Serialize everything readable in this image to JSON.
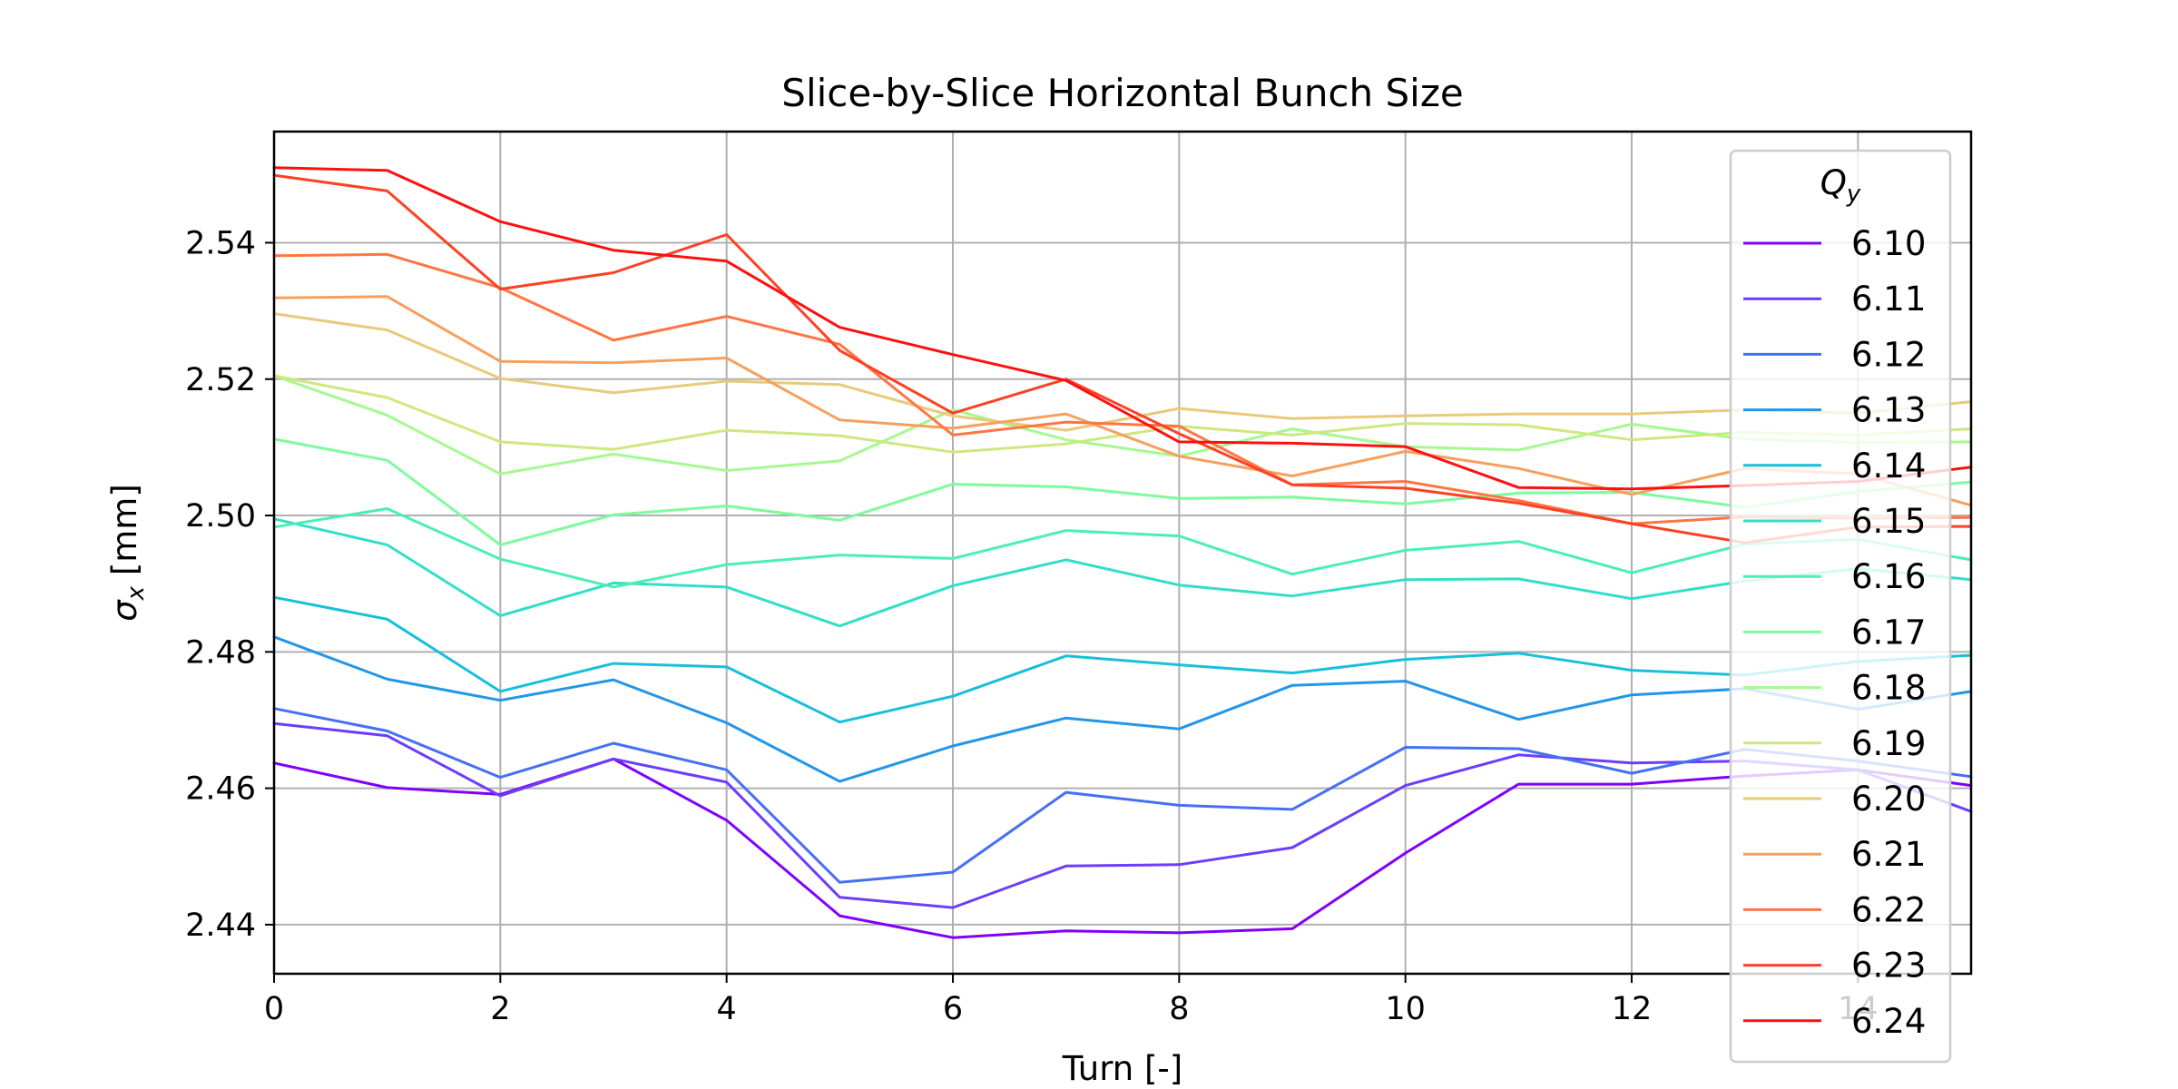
{
  "chart_data": {
    "type": "line",
    "title": "Slice-by-Slice Horizontal Bunch Size",
    "xlabel": "Turn [-]",
    "ylabel": "σ",
    "ylabel_sub": "x",
    "ylabel_unit": " [mm]",
    "xlim": [
      0,
      15
    ],
    "ylim": [
      2.4328,
      2.5563
    ],
    "xticks": [
      0,
      2,
      4,
      6,
      8,
      10,
      12,
      14
    ],
    "xtick_labels": [
      "0",
      "2",
      "4",
      "6",
      "8",
      "10",
      "12",
      "14"
    ],
    "yticks": [
      2.44,
      2.46,
      2.48,
      2.5,
      2.52,
      2.54
    ],
    "ytick_labels": [
      "2.44",
      "2.46",
      "2.48",
      "2.50",
      "2.52",
      "2.54"
    ],
    "grid": true,
    "legend_title": "Q",
    "legend_title_sub": "y",
    "legend_placement": "upper-right",
    "x": [
      0,
      1,
      2,
      3,
      4,
      5,
      6,
      7,
      8,
      9,
      10,
      11,
      12,
      13,
      14,
      15
    ],
    "series": [
      {
        "name": "6.10",
        "color": "#7f00ff",
        "values": [
          2.4637,
          2.4601,
          2.4591,
          2.4643,
          2.4553,
          2.4413,
          2.4381,
          2.4391,
          2.4388,
          2.4394,
          2.4505,
          2.4606,
          2.4606,
          2.4618,
          2.4627,
          2.4604
        ]
      },
      {
        "name": "6.11",
        "color": "#6b3dfd",
        "values": [
          2.4695,
          2.4677,
          2.4589,
          2.4643,
          2.4609,
          2.444,
          2.4425,
          2.4486,
          2.4488,
          2.4513,
          2.4604,
          2.4649,
          2.4637,
          2.464,
          2.4627,
          2.4566
        ]
      },
      {
        "name": "6.12",
        "color": "#4570f4",
        "values": [
          2.4717,
          2.4684,
          2.4616,
          2.4666,
          2.4627,
          2.4462,
          2.4477,
          2.4594,
          2.4575,
          2.4569,
          2.466,
          2.4658,
          2.4622,
          2.4657,
          2.464,
          2.4617
        ]
      },
      {
        "name": "6.13",
        "color": "#2296e8",
        "values": [
          2.4822,
          2.476,
          2.4729,
          2.4759,
          2.4696,
          2.461,
          2.4662,
          2.4703,
          2.4687,
          2.4751,
          2.4757,
          2.4701,
          2.4737,
          2.4746,
          2.4716,
          2.4742
        ]
      },
      {
        "name": "6.14",
        "color": "#17c0d9",
        "values": [
          2.488,
          2.4848,
          2.4742,
          2.4783,
          2.4778,
          2.4697,
          2.4735,
          2.4794,
          2.4781,
          2.4769,
          2.4789,
          2.4798,
          2.4773,
          2.4766,
          2.4786,
          2.4795
        ]
      },
      {
        "name": "6.15",
        "color": "#32dfc6",
        "values": [
          2.4995,
          2.4957,
          2.4853,
          2.4901,
          2.4895,
          2.4838,
          2.4897,
          2.4935,
          2.4898,
          2.4882,
          2.4906,
          2.4907,
          2.4878,
          2.4904,
          2.4922,
          2.4906
        ]
      },
      {
        "name": "6.16",
        "color": "#4af0b2",
        "values": [
          2.4983,
          2.501,
          2.4936,
          2.4895,
          2.4928,
          2.4942,
          2.4937,
          2.4978,
          2.497,
          2.4914,
          2.4949,
          2.4962,
          2.4916,
          2.4958,
          2.4965,
          2.4935
        ]
      },
      {
        "name": "6.17",
        "color": "#7cfc9c",
        "values": [
          2.5112,
          2.5081,
          2.4957,
          2.5001,
          2.5014,
          2.4993,
          2.5046,
          2.5042,
          2.5025,
          2.5027,
          2.5017,
          2.5033,
          2.5034,
          2.5012,
          2.5035,
          2.5049
        ]
      },
      {
        "name": "6.18",
        "color": "#a4f990",
        "values": [
          2.5205,
          2.5147,
          2.5061,
          2.509,
          2.5066,
          2.508,
          2.5155,
          2.5111,
          2.5087,
          2.5127,
          2.5101,
          2.5096,
          2.5134,
          2.5112,
          2.5107,
          2.5108
        ]
      },
      {
        "name": "6.19",
        "color": "#cde87f",
        "values": [
          2.5205,
          2.5173,
          2.5108,
          2.5097,
          2.5125,
          2.5117,
          2.5093,
          2.5105,
          2.5131,
          2.5118,
          2.5135,
          2.5133,
          2.5111,
          2.5122,
          2.5118,
          2.5127
        ]
      },
      {
        "name": "6.20",
        "color": "#e9c97a",
        "values": [
          2.5296,
          2.5272,
          2.5201,
          2.518,
          2.5197,
          2.5192,
          2.5146,
          2.5125,
          2.5157,
          2.5142,
          2.5146,
          2.5149,
          2.5149,
          2.5155,
          2.515,
          2.5167
        ]
      },
      {
        "name": "6.21",
        "color": "#f7a05d",
        "values": [
          2.5319,
          2.5321,
          2.5226,
          2.5224,
          2.5231,
          2.514,
          2.5128,
          2.5149,
          2.5087,
          2.5058,
          2.5094,
          2.5069,
          2.5031,
          2.5069,
          2.5061,
          2.5015
        ]
      },
      {
        "name": "6.22",
        "color": "#ff7643",
        "values": [
          2.5381,
          2.5383,
          2.5334,
          2.5257,
          2.5292,
          2.5251,
          2.5118,
          2.5137,
          2.5131,
          2.5045,
          2.505,
          2.5022,
          2.4988,
          2.4998,
          2.4996,
          2.4997
        ]
      },
      {
        "name": "6.23",
        "color": "#fe4124",
        "values": [
          2.5499,
          2.5476,
          2.5332,
          2.5356,
          2.5412,
          2.5242,
          2.515,
          2.52,
          2.512,
          2.5045,
          2.504,
          2.5018,
          2.4988,
          2.496,
          2.4983,
          2.4984
        ]
      },
      {
        "name": "6.24",
        "color": "#ff1010",
        "values": [
          2.551,
          2.5506,
          2.5431,
          2.5389,
          2.5373,
          2.5276,
          2.5236,
          2.5198,
          2.5108,
          2.5106,
          2.5101,
          2.5041,
          2.5039,
          2.5044,
          2.505,
          2.5071
        ]
      }
    ]
  }
}
